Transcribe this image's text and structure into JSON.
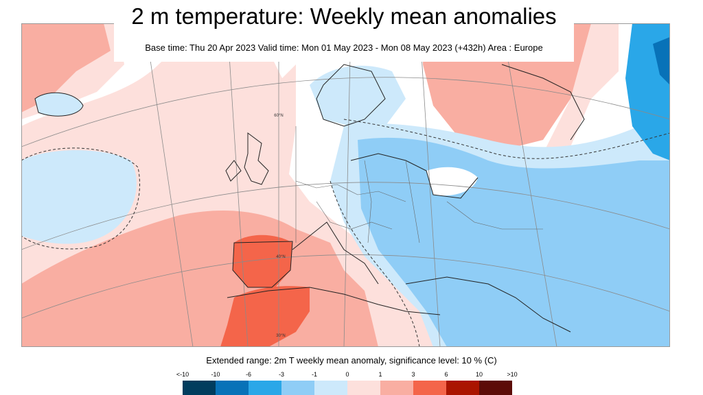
{
  "header": {
    "title": "2 m temperature: Weekly mean anomalies",
    "subtitle": "Base time: Thu 20 Apr 2023 Valid time: Mon 01 May 2023 - Mon 08 May 2023 (+432h) Area : Europe"
  },
  "map": {
    "area": "Europe",
    "lat_labels": [
      "60°N",
      "40°N",
      "30°N"
    ]
  },
  "legend": {
    "caption": "Extended range: 2m T weekly mean anomaly, significance level: 10 % (C)",
    "ticks": [
      "<-10",
      "-10",
      "-6",
      "-3",
      "-1",
      "0",
      "1",
      "3",
      "6",
      "10",
      ">10"
    ],
    "colors": [
      "#003d5e",
      "#0872b8",
      "#2aa7e8",
      "#8fcdf6",
      "#cde9fb",
      "#fde0dc",
      "#f9aea2",
      "#f4654a",
      "#aa1500",
      "#5c0c08"
    ]
  }
}
